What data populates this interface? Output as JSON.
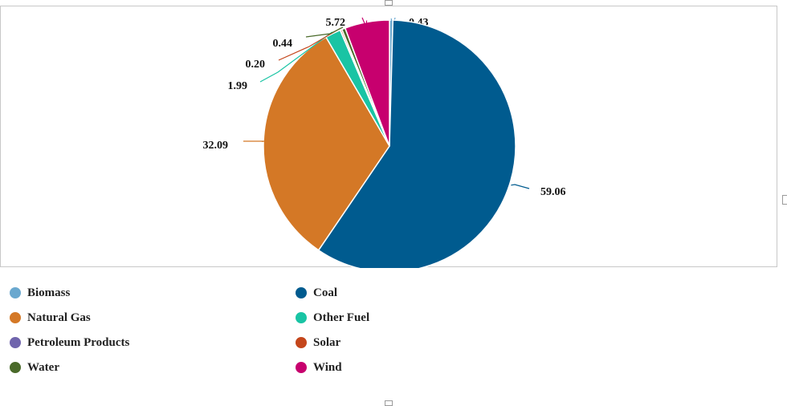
{
  "chart_data": {
    "type": "pie",
    "title": "",
    "slices": [
      {
        "name": "Biomass",
        "value": 0.43,
        "label": "0.43",
        "color": "#6aa8cf"
      },
      {
        "name": "Coal",
        "value": 59.06,
        "label": "59.06",
        "color": "#005b8f"
      },
      {
        "name": "Natural Gas",
        "value": 32.09,
        "label": "32.09",
        "color": "#d47826"
      },
      {
        "name": "Other Fuel",
        "value": 1.99,
        "label": "1.99",
        "color": "#19c4a4"
      },
      {
        "name": "Petroleum Products",
        "value": 0.04,
        "label": "",
        "color": "#7065ad"
      },
      {
        "name": "Solar",
        "value": 0.2,
        "label": "0.20",
        "color": "#c4461b"
      },
      {
        "name": "Water",
        "value": 0.44,
        "label": "0.44",
        "color": "#4a6a2a"
      },
      {
        "name": "Wind",
        "value": 5.72,
        "label": "5.72",
        "color": "#c7006e"
      }
    ],
    "legend_position": "bottom"
  },
  "legend": [
    {
      "label": "Biomass",
      "color": "#6aa8cf"
    },
    {
      "label": "Coal",
      "color": "#005b8f"
    },
    {
      "label": "Natural Gas",
      "color": "#d47826"
    },
    {
      "label": "Other Fuel",
      "color": "#19c4a4"
    },
    {
      "label": "Petroleum Products",
      "color": "#7065ad"
    },
    {
      "label": "Solar",
      "color": "#c4461b"
    },
    {
      "label": "Water",
      "color": "#4a6a2a"
    },
    {
      "label": "Wind",
      "color": "#c7006e"
    }
  ]
}
